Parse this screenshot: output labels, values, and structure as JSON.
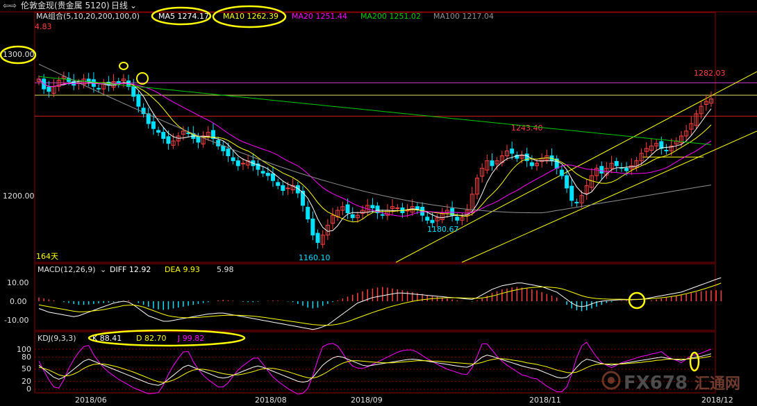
{
  "header": {
    "icon": "back-forward-arrows-icon",
    "title": "伦敦金现(贵金属 5120)",
    "period": "日线",
    "period_icon": "chevron-down-icon"
  },
  "colors": {
    "up": "#ff4040",
    "down": "#00e0ff",
    "ma5": "#ffffff",
    "ma10": "#ffff00",
    "ma20": "#ff00ff",
    "ma200": "#00cc00",
    "ma100": "#909090",
    "grid": "#8b0000",
    "highlight": "#ffff00"
  },
  "chart_data": [
    {
      "type": "candlestick",
      "panel": "price",
      "legend": {
        "group": "MA组合(5,10,20,200,100,0)",
        "ma5": "MA5 1274.17",
        "ma10": "MA10 1262.39",
        "ma20": "MA20 1251.44",
        "ma200": "MA200 1251.02",
        "ma100": "MA100 1217.04"
      },
      "y_ticks": [
        "1300.00",
        "1200.00"
      ],
      "x_ticks": [
        "2018/06",
        "2018/08",
        "2018/09",
        "2018/11",
        "2018/12"
      ],
      "annotations": {
        "top_left_value": "4.83",
        "high_label": "1282.03",
        "peak_label": "1243.40",
        "low_label": "1160.10",
        "mid_low_label": "1180.67",
        "days": "164天"
      },
      "price_range": [
        1150,
        1345
      ],
      "horizontal_lines": [
        1295,
        1285,
        1268
      ],
      "close_series": [
        1298,
        1290,
        1288,
        1292,
        1297,
        1300,
        1296,
        1293,
        1295,
        1298,
        1296,
        1292,
        1290,
        1294,
        1293,
        1296,
        1295,
        1298,
        1292,
        1284,
        1276,
        1270,
        1262,
        1258,
        1255,
        1250,
        1246,
        1248,
        1252,
        1256,
        1254,
        1250,
        1247,
        1252,
        1255,
        1250,
        1244,
        1240,
        1236,
        1232,
        1228,
        1230,
        1232,
        1228,
        1225,
        1222,
        1220,
        1216,
        1212,
        1208,
        1210,
        1212,
        1206,
        1196,
        1185,
        1172,
        1166,
        1172,
        1180,
        1188,
        1192,
        1195,
        1190,
        1186,
        1188,
        1192,
        1196,
        1194,
        1190,
        1188,
        1192,
        1195,
        1194,
        1190,
        1192,
        1195,
        1193,
        1188,
        1184,
        1182,
        1186,
        1190,
        1192,
        1188,
        1184,
        1186,
        1192,
        1205,
        1218,
        1226,
        1232,
        1228,
        1232,
        1236,
        1240,
        1238,
        1234,
        1236,
        1232,
        1228,
        1230,
        1234,
        1236,
        1232,
        1226,
        1220,
        1210,
        1200,
        1198,
        1204,
        1212,
        1220,
        1226,
        1222,
        1226,
        1230,
        1228,
        1226,
        1224,
        1228,
        1232,
        1238,
        1242,
        1244,
        1246,
        1242,
        1240,
        1244,
        1248,
        1252,
        1256,
        1262,
        1270,
        1276,
        1280,
        1282
      ]
    },
    {
      "type": "macd",
      "panel": "macd",
      "legend": {
        "name": "MACD(12,26,9)",
        "diff": "DIFF 12.92",
        "dea": "DEA 9.93",
        "macd": "5.98"
      },
      "y_ticks": [
        "10.00",
        "0.00",
        "-10.00"
      ],
      "y_range": [
        -16,
        16
      ],
      "hist": [
        2,
        1.5,
        1,
        0.5,
        0,
        -0.5,
        -1,
        -1.5,
        -2,
        -2,
        -1.8,
        -1.5,
        -1.2,
        -1,
        -0.8,
        -0.5,
        -0.2,
        0.2,
        0.5,
        0,
        -1,
        -2,
        -3,
        -4,
        -4.5,
        -4.8,
        -4.5,
        -4,
        -3.5,
        -3,
        -2.5,
        -2,
        -1.5,
        -1,
        -0.5,
        0,
        0.5,
        0.8,
        0.5,
        0.2,
        0,
        -0.3,
        -0.5,
        -0.5,
        -0.3,
        0,
        0.2,
        0.4,
        0.3,
        0.1,
        -0.2,
        -0.5,
        -1.5,
        -2.5,
        -3.5,
        -4,
        -3.5,
        -2.5,
        -1.5,
        -0.5,
        0.5,
        1.5,
        2.5,
        3.5,
        4.5,
        5.5,
        6.5,
        7,
        7.5,
        7.8,
        7.5,
        7,
        6.5,
        6,
        5.5,
        5,
        4.5,
        4,
        3.5,
        3,
        2.5,
        2,
        1.5,
        1,
        0.5,
        0.2,
        0,
        -0.2,
        0.5,
        1.5,
        3,
        4.5,
        5.5,
        6.5,
        7,
        7.5,
        7.8,
        7.5,
        7,
        6.5,
        6,
        5,
        4,
        3,
        2,
        0,
        -2,
        -4,
        -5,
        -5.5,
        -5,
        -4,
        -3,
        -2,
        -1,
        -0.5,
        0,
        0.3,
        0.5,
        0.3,
        0.1,
        -0.1,
        0.1,
        0.5,
        1,
        1.5,
        2,
        2.5,
        3,
        3.5,
        4,
        4.5,
        5,
        5.5,
        5.8,
        6,
        6,
        5.98
      ],
      "diff_series": [
        -4,
        -5,
        -6,
        -6.5,
        -7,
        -7.5,
        -8,
        -8.5,
        -8,
        -7,
        -6,
        -5,
        -4,
        -3,
        -2,
        -1,
        -0.5,
        0,
        -0.5,
        -2,
        -4,
        -6,
        -8,
        -9,
        -10,
        -11,
        -11,
        -10.5,
        -10,
        -9.5,
        -9,
        -8.5,
        -8,
        -7.5,
        -7,
        -6.8,
        -6.5,
        -6.5,
        -7,
        -7.5,
        -8,
        -8.5,
        -9,
        -9.5,
        -10,
        -10.5,
        -11,
        -11.5,
        -12,
        -12.5,
        -13,
        -13.5,
        -14,
        -14.5,
        -15,
        -15.5,
        -15,
        -14,
        -13,
        -11,
        -9,
        -7,
        -5,
        -3,
        -1,
        0,
        1,
        2,
        2.5,
        3,
        3.5,
        4,
        4.5,
        4.5,
        4.3,
        4,
        3.7,
        3.5,
        3.2,
        3,
        2.7,
        2.5,
        2.2,
        2,
        1.8,
        1.5,
        1.2,
        1,
        2,
        3.5,
        5,
        6.5,
        7.5,
        8.5,
        9,
        9.5,
        10,
        10,
        9.5,
        9,
        8.5,
        8,
        7,
        6,
        5,
        3,
        1,
        -1,
        -2.5,
        -3,
        -2.5,
        -1.5,
        -0.5,
        0,
        0.3,
        0.5,
        0.7,
        0.8,
        0.8,
        0.8,
        0.9,
        1,
        1.5,
        2,
        2.5,
        3,
        3.5,
        4,
        4.5,
        5,
        6,
        7,
        8,
        9,
        10,
        11,
        12,
        12.92
      ],
      "dea_series": [
        -2,
        -2.5,
        -3,
        -3.5,
        -4,
        -4.5,
        -5,
        -5.5,
        -5.8,
        -5.8,
        -5.6,
        -5.3,
        -5,
        -4.6,
        -4.1,
        -3.5,
        -3,
        -2.4,
        -2.2,
        -2.1,
        -2.5,
        -3.2,
        -4.2,
        -5.2,
        -6.2,
        -7.2,
        -8,
        -8.5,
        -8.8,
        -9,
        -9.1,
        -9,
        -8.9,
        -8.7,
        -8.4,
        -8.2,
        -8,
        -7.8,
        -7.7,
        -7.7,
        -7.7,
        -7.8,
        -8,
        -8.2,
        -8.5,
        -8.8,
        -9.2,
        -9.6,
        -10,
        -10.4,
        -10.8,
        -11.2,
        -11.6,
        -12,
        -12.4,
        -12.8,
        -13,
        -13.2,
        -13.2,
        -13,
        -12.6,
        -12,
        -11.2,
        -10.2,
        -9.2,
        -8.2,
        -7.2,
        -6.2,
        -5.3,
        -4.4,
        -3.5,
        -2.7,
        -2,
        -1.3,
        -0.7,
        -0.1,
        0.4,
        0.8,
        1.1,
        1.4,
        1.6,
        1.8,
        1.9,
        1.9,
        1.9,
        1.8,
        1.7,
        1.6,
        1.6,
        1.8,
        2.2,
        2.8,
        3.5,
        4.3,
        5,
        5.7,
        6.3,
        6.8,
        7.2,
        7.5,
        7.7,
        7.8,
        7.8,
        7.6,
        7.3,
        6.8,
        6,
        5,
        4,
        3,
        2.3,
        1.8,
        1.5,
        1.3,
        1.2,
        1.1,
        1.1,
        1.1,
        1,
        1,
        1,
        1.1,
        1.2,
        1.4,
        1.6,
        1.9,
        2.2,
        2.6,
        3,
        3.5,
        4.1,
        4.8,
        5.5,
        6.3,
        7.1,
        8,
        8.9,
        9.93
      ]
    },
    {
      "type": "kdj",
      "panel": "kdj",
      "legend": {
        "name": "KDJ(9,3,3)",
        "k": "K 88.41",
        "d": "D 82.70",
        "j": "J 99.82"
      },
      "y_ticks": [
        "100",
        "80",
        "50",
        "20",
        "0"
      ],
      "y_range": [
        -10,
        110
      ],
      "k_series": [
        60,
        50,
        40,
        30,
        25,
        30,
        40,
        50,
        60,
        70,
        75,
        70,
        65,
        60,
        55,
        50,
        45,
        40,
        35,
        30,
        25,
        20,
        15,
        12,
        10,
        15,
        25,
        35,
        45,
        55,
        60,
        55,
        50,
        45,
        40,
        35,
        30,
        28,
        30,
        35,
        40,
        45,
        50,
        55,
        58,
        55,
        50,
        45,
        40,
        35,
        30,
        25,
        20,
        18,
        20,
        30,
        45,
        60,
        70,
        78,
        82,
        80,
        75,
        70,
        65,
        60,
        58,
        60,
        62,
        64,
        66,
        68,
        70,
        72,
        74,
        75,
        74,
        72,
        70,
        68,
        66,
        64,
        62,
        60,
        58,
        56,
        55,
        60,
        70,
        80,
        85,
        82,
        78,
        74,
        70,
        66,
        62,
        58,
        55,
        52,
        50,
        45,
        40,
        35,
        30,
        28,
        30,
        40,
        55,
        68,
        75,
        72,
        68,
        64,
        62,
        60,
        62,
        64,
        66,
        68,
        70,
        72,
        74,
        76,
        78,
        80,
        78,
        76,
        74,
        72,
        75,
        78,
        80,
        82,
        85,
        88.41
      ],
      "d_series": [
        55,
        52,
        48,
        42,
        36,
        33,
        34,
        38,
        44,
        52,
        58,
        62,
        63,
        63,
        61,
        58,
        55,
        51,
        47,
        43,
        38,
        33,
        28,
        23,
        19,
        17,
        19,
        23,
        29,
        36,
        43,
        48,
        50,
        50,
        48,
        45,
        42,
        39,
        37,
        36,
        36,
        38,
        41,
        44,
        48,
        51,
        52,
        52,
        50,
        47,
        44,
        40,
        36,
        32,
        29,
        28,
        31,
        37,
        44,
        52,
        59,
        65,
        69,
        71,
        71,
        70,
        69,
        68,
        67,
        66,
        66,
        66,
        67,
        68,
        69,
        70,
        71,
        71,
        71,
        70,
        70,
        69,
        68,
        67,
        66,
        65,
        64,
        63,
        64,
        67,
        71,
        74,
        76,
        76,
        75,
        73,
        71,
        69,
        66,
        64,
        62,
        59,
        56,
        52,
        48,
        45,
        42,
        41,
        43,
        48,
        54,
        59,
        62,
        63,
        63,
        63,
        63,
        63,
        64,
        65,
        66,
        67,
        69,
        70,
        72,
        73,
        75,
        75,
        75,
        75,
        75,
        76,
        77,
        78,
        80,
        82.7
      ],
      "j_series": [
        70,
        46,
        24,
        6,
        3,
        24,
        52,
        74,
        92,
        106,
        109,
        86,
        69,
        54,
        43,
        34,
        25,
        18,
        11,
        4,
        -1,
        -6,
        -11,
        -10,
        -8,
        11,
        37,
        59,
        77,
        93,
        94,
        69,
        50,
        35,
        24,
        15,
        6,
        6,
        16,
        33,
        48,
        59,
        68,
        77,
        78,
        63,
        46,
        31,
        20,
        11,
        2,
        -5,
        -12,
        -10,
        2,
        34,
        73,
        106,
        112,
        114,
        108,
        90,
        71,
        58,
        53,
        52,
        56,
        62,
        68,
        74,
        80,
        86,
        92,
        96,
        98,
        98,
        92,
        84,
        76,
        70,
        62,
        56,
        50,
        46,
        42,
        38,
        37,
        54,
        82,
        113,
        113,
        98,
        82,
        70,
        60,
        52,
        44,
        36,
        33,
        28,
        26,
        17,
        8,
        1,
        -6,
        -6,
        6,
        38,
        79,
        108,
        117,
        98,
        80,
        66,
        60,
        54,
        60,
        66,
        70,
        74,
        78,
        82,
        84,
        88,
        90,
        94,
        84,
        76,
        72,
        66,
        75,
        84,
        86,
        90,
        95,
        99.82
      ]
    }
  ],
  "watermark": {
    "brand": "FX678",
    "cn": "汇通网",
    "logo_icon": "fx678-logo-icon"
  }
}
